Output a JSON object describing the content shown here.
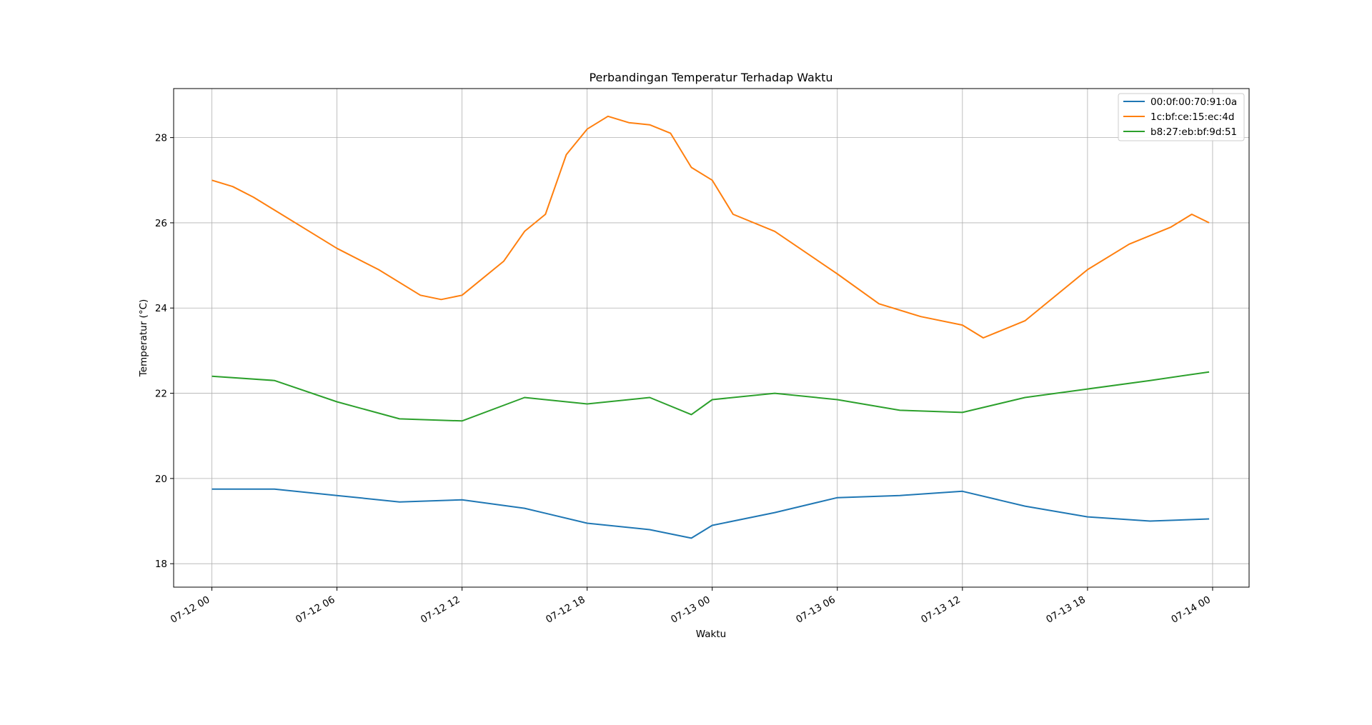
{
  "chart_data": {
    "type": "line",
    "title": "Perbandingan Temperatur Terhadap Waktu",
    "xlabel": "Waktu",
    "ylabel": "Temperatur (°C)",
    "xlim": [
      "2019-07-11T22:10",
      "2019-07-14T01:45"
    ],
    "ylim": [
      17.45,
      29.15
    ],
    "x_ticks": [
      {
        "t": "2019-07-12T00:00",
        "label": "07-12 00"
      },
      {
        "t": "2019-07-12T06:00",
        "label": "07-12 06"
      },
      {
        "t": "2019-07-12T12:00",
        "label": "07-12 12"
      },
      {
        "t": "2019-07-12T18:00",
        "label": "07-12 18"
      },
      {
        "t": "2019-07-13T00:00",
        "label": "07-13 00"
      },
      {
        "t": "2019-07-13T06:00",
        "label": "07-13 06"
      },
      {
        "t": "2019-07-13T12:00",
        "label": "07-13 12"
      },
      {
        "t": "2019-07-13T18:00",
        "label": "07-13 18"
      },
      {
        "t": "2019-07-14T00:00",
        "label": "07-14 00"
      }
    ],
    "y_ticks": [
      18,
      20,
      22,
      24,
      26,
      28
    ],
    "grid": true,
    "legend_position": "top-right",
    "series": [
      {
        "name": "00:0f:00:70:91:0a",
        "color": "#1f77b4",
        "x": [
          "2019-07-12T00:00",
          "2019-07-12T03:00",
          "2019-07-12T06:00",
          "2019-07-12T09:00",
          "2019-07-12T12:00",
          "2019-07-12T15:00",
          "2019-07-12T18:00",
          "2019-07-12T21:00",
          "2019-07-12T23:00",
          "2019-07-13T00:00",
          "2019-07-13T03:00",
          "2019-07-13T06:00",
          "2019-07-13T09:00",
          "2019-07-13T12:00",
          "2019-07-13T15:00",
          "2019-07-13T18:00",
          "2019-07-13T21:00",
          "2019-07-13T23:50"
        ],
        "y": [
          19.75,
          19.75,
          19.6,
          19.45,
          19.5,
          19.3,
          18.95,
          18.8,
          18.6,
          18.9,
          19.2,
          19.55,
          19.6,
          19.7,
          19.35,
          19.1,
          19.0,
          19.05
        ]
      },
      {
        "name": "1c:bf:ce:15:ec:4d",
        "color": "#ff7f0e",
        "x": [
          "2019-07-12T00:00",
          "2019-07-12T01:00",
          "2019-07-12T02:00",
          "2019-07-12T03:00",
          "2019-07-12T05:00",
          "2019-07-12T06:00",
          "2019-07-12T08:00",
          "2019-07-12T10:00",
          "2019-07-12T11:00",
          "2019-07-12T12:00",
          "2019-07-12T14:00",
          "2019-07-12T15:00",
          "2019-07-12T16:00",
          "2019-07-12T17:00",
          "2019-07-12T18:00",
          "2019-07-12T19:00",
          "2019-07-12T20:00",
          "2019-07-12T21:00",
          "2019-07-12T22:00",
          "2019-07-12T23:00",
          "2019-07-13T00:00",
          "2019-07-13T01:00",
          "2019-07-13T03:00",
          "2019-07-13T06:00",
          "2019-07-13T08:00",
          "2019-07-13T10:00",
          "2019-07-13T12:00",
          "2019-07-13T13:00",
          "2019-07-13T15:00",
          "2019-07-13T18:00",
          "2019-07-13T20:00",
          "2019-07-13T22:00",
          "2019-07-13T23:00",
          "2019-07-13T23:50"
        ],
        "y": [
          27.0,
          26.85,
          26.6,
          26.3,
          25.7,
          25.4,
          24.9,
          24.3,
          24.2,
          24.3,
          25.1,
          25.8,
          26.2,
          27.6,
          28.2,
          28.5,
          28.35,
          28.3,
          28.1,
          27.3,
          27.0,
          26.2,
          25.8,
          24.8,
          24.1,
          23.8,
          23.6,
          23.3,
          23.7,
          24.9,
          25.5,
          25.9,
          26.2,
          26.0
        ]
      },
      {
        "name": "b8:27:eb:bf:9d:51",
        "color": "#2ca02c",
        "x": [
          "2019-07-12T00:00",
          "2019-07-12T03:00",
          "2019-07-12T06:00",
          "2019-07-12T09:00",
          "2019-07-12T12:00",
          "2019-07-12T15:00",
          "2019-07-12T18:00",
          "2019-07-12T21:00",
          "2019-07-12T23:00",
          "2019-07-13T00:00",
          "2019-07-13T03:00",
          "2019-07-13T06:00",
          "2019-07-13T09:00",
          "2019-07-13T12:00",
          "2019-07-13T15:00",
          "2019-07-13T18:00",
          "2019-07-13T21:00",
          "2019-07-13T23:50"
        ],
        "y": [
          22.4,
          22.3,
          21.8,
          21.4,
          21.35,
          21.9,
          21.75,
          21.9,
          21.5,
          21.85,
          22.0,
          21.85,
          21.6,
          21.55,
          21.9,
          22.1,
          22.3,
          22.5
        ]
      }
    ]
  }
}
